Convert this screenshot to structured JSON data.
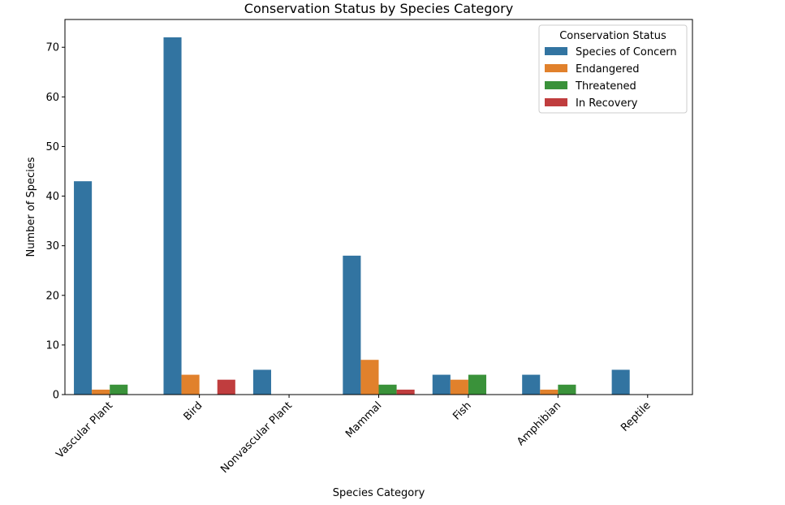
{
  "chart_data": {
    "type": "bar",
    "title": "Conservation Status by Species Category",
    "xlabel": "Species Category",
    "ylabel": "Number of Species",
    "ylim": [
      0,
      75.6
    ],
    "yticks": [
      0,
      10,
      20,
      30,
      40,
      50,
      60,
      70
    ],
    "categories": [
      "Vascular Plant",
      "Bird",
      "Nonvascular Plant",
      "Mammal",
      "Fish",
      "Amphibian",
      "Reptile"
    ],
    "legend": {
      "title": "Conservation Status",
      "placement": "upper right"
    },
    "grid": false,
    "series": [
      {
        "name": "Species of Concern",
        "color": "#3274a1",
        "values": [
          43,
          72,
          5,
          28,
          4,
          4,
          5
        ]
      },
      {
        "name": "Endangered",
        "color": "#e1812c",
        "values": [
          1,
          4,
          0,
          7,
          3,
          1,
          0
        ]
      },
      {
        "name": "Threatened",
        "color": "#3a923a",
        "values": [
          2,
          0,
          0,
          2,
          4,
          2,
          0
        ]
      },
      {
        "name": "In Recovery",
        "color": "#c03d3e",
        "values": [
          0,
          3,
          0,
          1,
          0,
          0,
          0
        ]
      }
    ]
  }
}
